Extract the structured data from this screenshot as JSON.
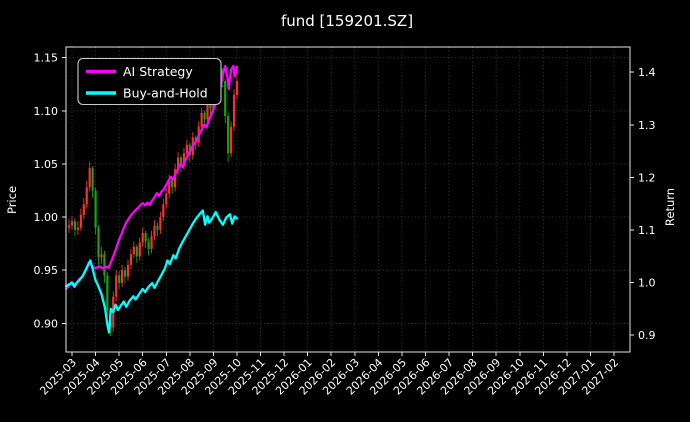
{
  "chart_data": {
    "type": "candlestick+line",
    "title": "fund [159201.SZ]",
    "ylabel_left": "Price",
    "ylabel_right": "Return",
    "grid": "dotted",
    "legend_position": "upper-left",
    "background_color": "#000000",
    "text_color": "#ffffff",
    "grid_color": "#4a4a4a",
    "frame_color": "#e6e6e6",
    "x_tick_labels": [
      "2025-03",
      "2025-04",
      "2025-05",
      "2025-06",
      "2025-07",
      "2025-08",
      "2025-09",
      "2025-10",
      "2025-11",
      "2025-12",
      "2026-01",
      "2026-02",
      "2026-03",
      "2026-04",
      "2026-05",
      "2026-06",
      "2026-07",
      "2026-08",
      "2026-09",
      "2026-10",
      "2026-11",
      "2026-12",
      "2027-01",
      "2027-02"
    ],
    "x_domain": [
      -0.255,
      23.678
    ],
    "y_left_ticks": [
      0.9,
      0.95,
      1.0,
      1.05,
      1.1,
      1.15
    ],
    "y_left_tick_labels": [
      "0.90",
      "0.95",
      "1.00",
      "1.05",
      "1.10",
      "1.15"
    ],
    "y_left_range": [
      0.873,
      1.16
    ],
    "y_right_ticks": [
      0.9,
      1.0,
      1.1,
      1.2,
      1.3,
      1.4
    ],
    "y_right_tick_labels": [
      "0.9",
      "1.0",
      "1.1",
      "1.2",
      "1.3",
      "1.4"
    ],
    "y_right_range": [
      0.868,
      1.448
    ],
    "series": [
      {
        "name": "AI Strategy",
        "axis": "right",
        "color": "#ff00ff",
        "points": [
          [
            -0.25,
            0.988
          ],
          [
            0,
            1.0
          ],
          [
            0.15,
            0.995
          ],
          [
            0.3,
            1.006
          ],
          [
            0.45,
            1.012
          ],
          [
            0.6,
            1.024
          ],
          [
            0.75,
            1.038
          ],
          [
            0.85,
            1.031
          ],
          [
            1.0,
            1.027
          ],
          [
            1.15,
            1.031
          ],
          [
            1.3,
            1.027
          ],
          [
            1.45,
            1.03
          ],
          [
            1.55,
            1.028
          ],
          [
            1.7,
            1.044
          ],
          [
            1.85,
            1.062
          ],
          [
            2.0,
            1.082
          ],
          [
            2.1,
            1.092
          ],
          [
            2.2,
            1.104
          ],
          [
            2.3,
            1.114
          ],
          [
            2.4,
            1.121
          ],
          [
            2.5,
            1.128
          ],
          [
            2.6,
            1.133
          ],
          [
            2.7,
            1.138
          ],
          [
            2.8,
            1.142
          ],
          [
            2.9,
            1.147
          ],
          [
            3.0,
            1.151
          ],
          [
            3.1,
            1.147
          ],
          [
            3.2,
            1.152
          ],
          [
            3.3,
            1.148
          ],
          [
            3.4,
            1.156
          ],
          [
            3.5,
            1.162
          ],
          [
            3.6,
            1.17
          ],
          [
            3.7,
            1.165
          ],
          [
            3.8,
            1.173
          ],
          [
            3.9,
            1.178
          ],
          [
            4.0,
            1.186
          ],
          [
            4.1,
            1.194
          ],
          [
            4.2,
            1.201
          ],
          [
            4.3,
            1.196
          ],
          [
            4.4,
            1.208
          ],
          [
            4.5,
            1.216
          ],
          [
            4.6,
            1.226
          ],
          [
            4.7,
            1.22
          ],
          [
            4.8,
            1.232
          ],
          [
            4.9,
            1.24
          ],
          [
            5.0,
            1.25
          ],
          [
            5.1,
            1.258
          ],
          [
            5.2,
            1.264
          ],
          [
            5.3,
            1.272
          ],
          [
            5.4,
            1.282
          ],
          [
            5.5,
            1.29
          ],
          [
            5.6,
            1.3
          ],
          [
            5.7,
            1.295
          ],
          [
            5.8,
            1.308
          ],
          [
            5.9,
            1.318
          ],
          [
            6.0,
            1.33
          ],
          [
            6.1,
            1.342
          ],
          [
            6.2,
            1.355
          ],
          [
            6.3,
            1.372
          ],
          [
            6.4,
            1.395
          ],
          [
            6.5,
            1.412
          ],
          [
            6.6,
            1.39
          ],
          [
            6.65,
            1.368
          ],
          [
            6.75,
            1.405
          ],
          [
            6.85,
            1.412
          ],
          [
            6.9,
            1.392
          ],
          [
            7.0,
            1.41
          ]
        ]
      },
      {
        "name": "Buy-and-Hold",
        "axis": "right",
        "color": "#00ffff",
        "points": [
          [
            -0.25,
            0.993
          ],
          [
            0,
            1.0
          ],
          [
            0.1,
            0.992
          ],
          [
            0.2,
            1.0
          ],
          [
            0.3,
            1.004
          ],
          [
            0.45,
            1.012
          ],
          [
            0.6,
            1.026
          ],
          [
            0.7,
            1.036
          ],
          [
            0.78,
            1.042
          ],
          [
            0.9,
            1.022
          ],
          [
            1.0,
            1.004
          ],
          [
            1.1,
            0.995
          ],
          [
            1.25,
            0.978
          ],
          [
            1.4,
            0.952
          ],
          [
            1.5,
            0.92
          ],
          [
            1.57,
            0.905
          ],
          [
            1.65,
            0.95
          ],
          [
            1.75,
            0.944
          ],
          [
            1.85,
            0.958
          ],
          [
            1.95,
            0.948
          ],
          [
            2.1,
            0.958
          ],
          [
            2.2,
            0.964
          ],
          [
            2.3,
            0.954
          ],
          [
            2.45,
            0.966
          ],
          [
            2.6,
            0.974
          ],
          [
            2.7,
            0.968
          ],
          [
            2.85,
            0.978
          ],
          [
            3.0,
            0.988
          ],
          [
            3.1,
            0.982
          ],
          [
            3.25,
            0.992
          ],
          [
            3.4,
            0.999
          ],
          [
            3.5,
            0.99
          ],
          [
            3.65,
            1.003
          ],
          [
            3.8,
            1.015
          ],
          [
            3.95,
            1.028
          ],
          [
            4.05,
            1.042
          ],
          [
            4.15,
            1.035
          ],
          [
            4.3,
            1.052
          ],
          [
            4.4,
            1.046
          ],
          [
            4.55,
            1.065
          ],
          [
            4.7,
            1.078
          ],
          [
            4.85,
            1.09
          ],
          [
            5.0,
            1.102
          ],
          [
            5.15,
            1.114
          ],
          [
            5.3,
            1.124
          ],
          [
            5.45,
            1.132
          ],
          [
            5.55,
            1.137
          ],
          [
            5.65,
            1.11
          ],
          [
            5.75,
            1.126
          ],
          [
            5.82,
            1.114
          ],
          [
            5.95,
            1.122
          ],
          [
            6.1,
            1.134
          ],
          [
            6.25,
            1.12
          ],
          [
            6.4,
            1.11
          ],
          [
            6.55,
            1.124
          ],
          [
            6.7,
            1.13
          ],
          [
            6.8,
            1.112
          ],
          [
            6.9,
            1.126
          ],
          [
            7.0,
            1.122
          ]
        ]
      }
    ],
    "candles": {
      "axis": "left",
      "up_color": "#f93131",
      "down_color": "#16a316",
      "ohlc": [
        [
          -0.125,
          0.99,
          0.998,
          0.985,
          0.992
        ],
        [
          0.0,
          0.992,
          1.001,
          0.988,
          0.996
        ],
        [
          0.125,
          0.996,
          0.999,
          0.982,
          0.988
        ],
        [
          0.25,
          0.988,
          0.996,
          0.983,
          0.99
        ],
        [
          0.375,
          0.99,
          1.008,
          0.987,
          1.002
        ],
        [
          0.5,
          1.002,
          1.018,
          0.998,
          1.012
        ],
        [
          0.625,
          1.012,
          1.034,
          1.008,
          1.028
        ],
        [
          0.75,
          1.028,
          1.052,
          1.024,
          1.046
        ],
        [
          0.875,
          1.046,
          1.048,
          1.018,
          1.025
        ],
        [
          1.0,
          1.025,
          1.028,
          0.984,
          0.99
        ],
        [
          1.125,
          0.99,
          0.992,
          0.955,
          0.962
        ],
        [
          1.25,
          0.962,
          0.972,
          0.956,
          0.965
        ],
        [
          1.375,
          0.965,
          0.968,
          0.938,
          0.945
        ],
        [
          1.5,
          0.945,
          0.948,
          0.905,
          0.912
        ],
        [
          1.625,
          0.912,
          0.915,
          0.888,
          0.896
        ],
        [
          1.75,
          0.896,
          0.93,
          0.892,
          0.925
        ],
        [
          1.875,
          0.925,
          0.95,
          0.921,
          0.945
        ],
        [
          2.0,
          0.945,
          0.949,
          0.932,
          0.938
        ],
        [
          2.125,
          0.938,
          0.955,
          0.934,
          0.95
        ],
        [
          2.25,
          0.95,
          0.953,
          0.938,
          0.944
        ],
        [
          2.375,
          0.944,
          0.96,
          0.94,
          0.955
        ],
        [
          2.5,
          0.955,
          0.97,
          0.951,
          0.965
        ],
        [
          2.625,
          0.965,
          0.977,
          0.961,
          0.972
        ],
        [
          2.75,
          0.972,
          0.974,
          0.957,
          0.963
        ],
        [
          2.875,
          0.963,
          0.981,
          0.959,
          0.976
        ],
        [
          3.0,
          0.976,
          0.99,
          0.972,
          0.985
        ],
        [
          3.125,
          0.985,
          0.987,
          0.971,
          0.977
        ],
        [
          3.25,
          0.977,
          0.98,
          0.964,
          0.97
        ],
        [
          3.375,
          0.97,
          0.987,
          0.966,
          0.982
        ],
        [
          3.5,
          0.982,
          0.997,
          0.978,
          0.992
        ],
        [
          3.625,
          0.992,
          0.995,
          0.982,
          0.988
        ],
        [
          3.75,
          0.988,
          1.005,
          0.984,
          1.0
        ],
        [
          3.875,
          1.0,
          1.017,
          0.996,
          1.012
        ],
        [
          4.0,
          1.012,
          1.027,
          1.008,
          1.022
        ],
        [
          4.125,
          1.022,
          1.04,
          1.018,
          1.035
        ],
        [
          4.25,
          1.035,
          1.037,
          1.022,
          1.028
        ],
        [
          4.375,
          1.028,
          1.05,
          1.024,
          1.045
        ],
        [
          4.5,
          1.045,
          1.061,
          1.041,
          1.056
        ],
        [
          4.625,
          1.056,
          1.058,
          1.042,
          1.048
        ],
        [
          4.75,
          1.048,
          1.065,
          1.044,
          1.06
        ],
        [
          4.875,
          1.06,
          1.073,
          1.056,
          1.068
        ],
        [
          5.0,
          1.068,
          1.07,
          1.052,
          1.058
        ],
        [
          5.125,
          1.058,
          1.08,
          1.054,
          1.075
        ],
        [
          5.25,
          1.075,
          1.077,
          1.063,
          1.07
        ],
        [
          5.375,
          1.07,
          1.09,
          1.066,
          1.085
        ],
        [
          5.5,
          1.085,
          1.103,
          1.081,
          1.098
        ],
        [
          5.625,
          1.098,
          1.1,
          1.086,
          1.092
        ],
        [
          5.75,
          1.092,
          1.113,
          1.088,
          1.108
        ],
        [
          5.875,
          1.108,
          1.11,
          1.096,
          1.102
        ],
        [
          6.0,
          1.102,
          1.12,
          1.098,
          1.115
        ],
        [
          6.125,
          1.115,
          1.13,
          1.111,
          1.125
        ],
        [
          6.25,
          1.125,
          1.145,
          1.121,
          1.138
        ],
        [
          6.375,
          1.138,
          1.14,
          1.122,
          1.128
        ],
        [
          6.5,
          1.128,
          1.13,
          1.088,
          1.095
        ],
        [
          6.625,
          1.095,
          1.098,
          1.052,
          1.06
        ],
        [
          6.75,
          1.06,
          1.09,
          1.056,
          1.085
        ],
        [
          6.875,
          1.085,
          1.12,
          1.081,
          1.115
        ],
        [
          7.0,
          1.115,
          1.14,
          1.111,
          1.128
        ]
      ]
    }
  }
}
